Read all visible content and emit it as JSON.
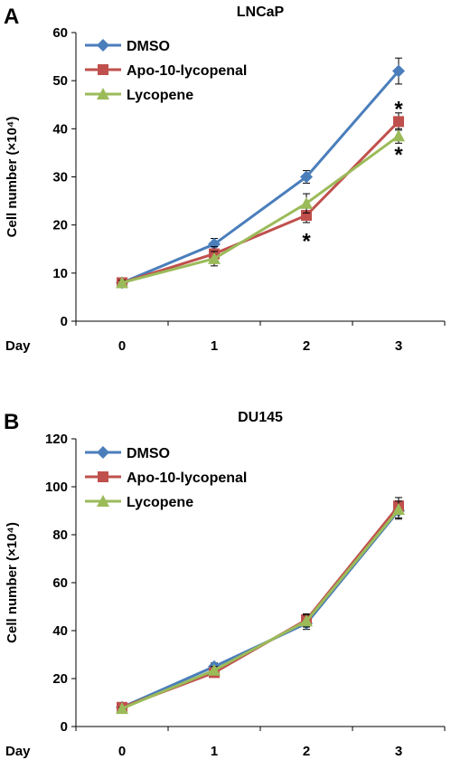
{
  "chart_data": [
    {
      "type": "line",
      "panel_label": "A",
      "title": "LNCaP",
      "ylabel": "Cell number (×10⁴)",
      "x_axis_name": "Day",
      "categories": [
        "0",
        "1",
        "2",
        "3"
      ],
      "ylim": [
        0,
        60
      ],
      "yticks": [
        0,
        10,
        20,
        30,
        40,
        50,
        60
      ],
      "legend_position": "top-left",
      "series": [
        {
          "name": "DMSO",
          "color": "#4a7ebb",
          "marker": "diamond",
          "values": [
            8,
            16,
            30,
            52
          ],
          "errors": [
            0.5,
            1.2,
            1.3,
            2.7
          ]
        },
        {
          "name": "Apo-10-lycopenal",
          "color": "#c0504d",
          "marker": "square",
          "values": [
            8,
            14,
            22,
            41.5
          ],
          "errors": [
            0.5,
            1.5,
            1.5,
            1.8
          ]
        },
        {
          "name": "Lycopene",
          "color": "#9bbb59",
          "marker": "triangle",
          "values": [
            8,
            13,
            24.5,
            38.5
          ],
          "errors": [
            0.5,
            1.5,
            2.0,
            1.5
          ]
        }
      ],
      "annotations": [
        {
          "text": "*",
          "x": "2",
          "y": 17
        },
        {
          "text": "*",
          "x": "3",
          "y": 44.5
        },
        {
          "text": "*",
          "x": "3",
          "y": 35
        }
      ]
    },
    {
      "type": "line",
      "panel_label": "B",
      "title": "DU145",
      "ylabel": "Cell number (×10⁴)",
      "x_axis_name": "Day",
      "categories": [
        "0",
        "1",
        "2",
        "3"
      ],
      "ylim": [
        0,
        120
      ],
      "yticks": [
        0,
        20,
        40,
        60,
        80,
        100,
        120
      ],
      "legend_position": "top-left",
      "series": [
        {
          "name": "DMSO",
          "color": "#4a7ebb",
          "marker": "diamond",
          "values": [
            8,
            25,
            43,
            90
          ],
          "errors": [
            0.5,
            1.5,
            2.5,
            3.5
          ]
        },
        {
          "name": "Apo-10-lycopenal",
          "color": "#c0504d",
          "marker": "square",
          "values": [
            8,
            22.5,
            44.5,
            92
          ],
          "errors": [
            0.5,
            1.5,
            2.5,
            3.5
          ]
        },
        {
          "name": "Lycopene",
          "color": "#9bbb59",
          "marker": "triangle",
          "values": [
            7.5,
            23.5,
            44,
            90.5
          ],
          "errors": [
            0.5,
            1.5,
            2.5,
            3.5
          ]
        }
      ],
      "annotations": []
    }
  ]
}
